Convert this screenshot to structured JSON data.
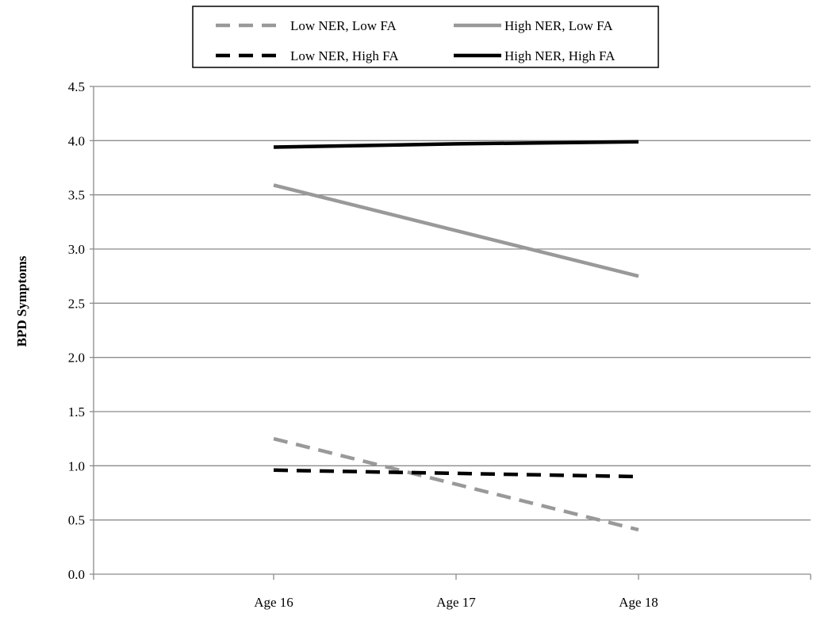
{
  "chart_data": {
    "type": "line",
    "title": "",
    "xlabel": "",
    "ylabel": "BPD Symptoms",
    "categories": [
      "Age 16",
      "Age 17",
      "Age 18"
    ],
    "ylim": [
      0,
      4.5
    ],
    "yticks": [
      0.0,
      0.5,
      1.0,
      1.5,
      2.0,
      2.5,
      3.0,
      3.5,
      4.0,
      4.5
    ],
    "ytick_labels": [
      "0.0",
      "0.5",
      "1.0",
      "1.5",
      "2.0",
      "2.5",
      "3.0",
      "3.5",
      "4.0",
      "4.5"
    ],
    "grid": true,
    "legend_position": "top-center",
    "series": [
      {
        "name": "Low NER, Low FA",
        "values": [
          1.25,
          0.83,
          0.41
        ],
        "color": "#999999",
        "dashed": true
      },
      {
        "name": "High NER, Low FA",
        "values": [
          3.59,
          3.17,
          2.75
        ],
        "color": "#999999",
        "dashed": false
      },
      {
        "name": "Low NER, High FA",
        "values": [
          0.96,
          0.93,
          0.9
        ],
        "color": "#000000",
        "dashed": true
      },
      {
        "name": "High NER, High FA",
        "values": [
          3.94,
          3.97,
          3.99
        ],
        "color": "#000000",
        "dashed": false
      }
    ]
  }
}
